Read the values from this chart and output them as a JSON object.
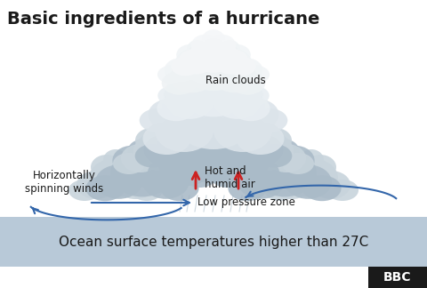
{
  "title": "Basic ingredients of a hurricane",
  "title_fontsize": 14,
  "title_color": "#1a1a1a",
  "bg_color": "#ffffff",
  "ocean_bg_color": "#b8c9d8",
  "ocean_text": "Ocean surface temperatures higher than 27C",
  "ocean_text_color": "#1a1a1a",
  "ocean_text_fontsize": 11,
  "label_rain_clouds": "Rain clouds",
  "label_hot_humid": "Hot and\nhumid air",
  "label_low_pressure": "Low pressure zone",
  "label_spinning": "Horizontally\nspinning winds",
  "label_color": "#1a1a1a",
  "arrow_color_red": "#cc2222",
  "arrow_color_blue": "#3366aa",
  "bbc_text": "BBC",
  "bbc_bg": "#1a1a1a",
  "bbc_text_color": "#ffffff",
  "cloud_colors": {
    "dark": "#8899aa",
    "mid": "#aabbc8",
    "light": "#c8d4dc",
    "white": "#dce4ea",
    "bright1": "#e8eef2",
    "bright2": "#eef2f4",
    "bright3": "#f0f4f6",
    "bright4": "#f4f6f8"
  }
}
